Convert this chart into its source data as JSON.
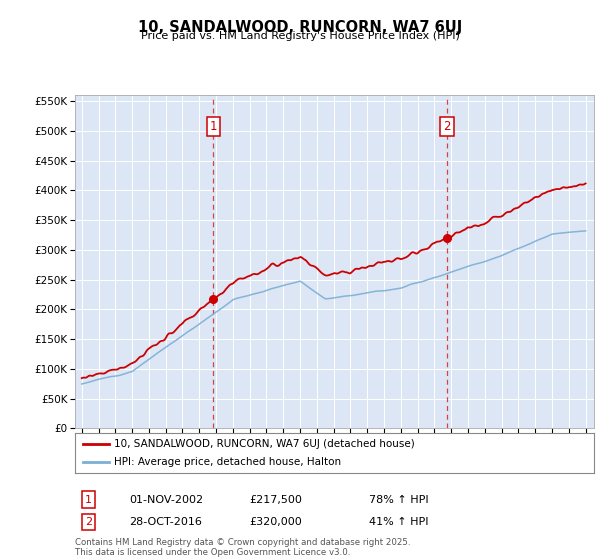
{
  "title": "10, SANDALWOOD, RUNCORN, WA7 6UJ",
  "subtitle": "Price paid vs. HM Land Registry's House Price Index (HPI)",
  "background_color": "#ffffff",
  "plot_background": "#dce6f5",
  "sale1_date": "01-NOV-2002",
  "sale1_price": 217500,
  "sale1_label": "78% ↑ HPI",
  "sale2_date": "28-OCT-2016",
  "sale2_price": 320000,
  "sale2_label": "41% ↑ HPI",
  "legend_line1": "10, SANDALWOOD, RUNCORN, WA7 6UJ (detached house)",
  "legend_line2": "HPI: Average price, detached house, Halton",
  "footer": "Contains HM Land Registry data © Crown copyright and database right 2025.\nThis data is licensed under the Open Government Licence v3.0.",
  "hpi_color": "#7bafd4",
  "price_color": "#cc0000",
  "vline_color": "#cc0000",
  "ylim_max": 560000,
  "ylim_min": 0,
  "xlim_min": 1994.6,
  "xlim_max": 2025.5
}
